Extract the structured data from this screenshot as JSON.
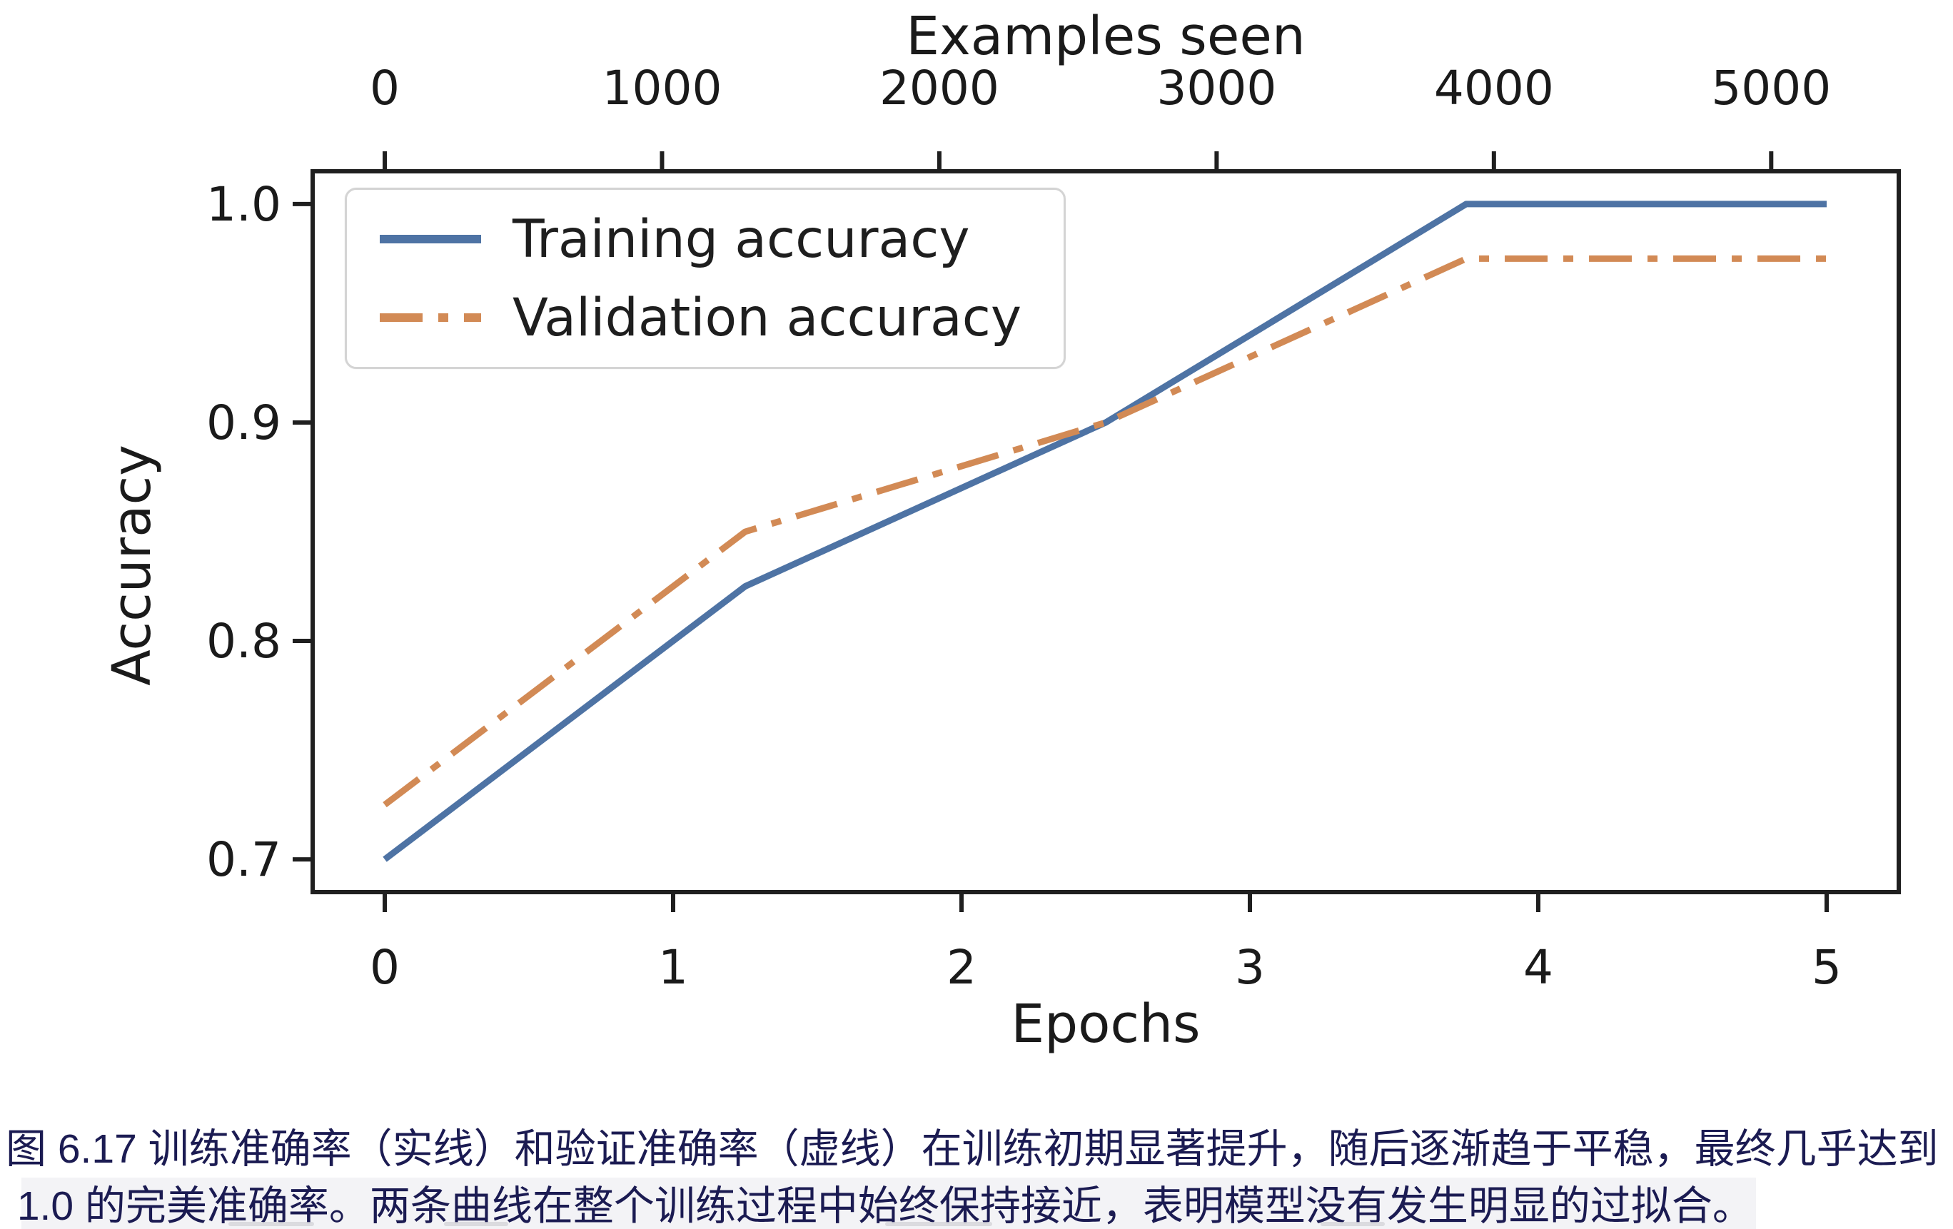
{
  "figure": {
    "caption_line1": "图 6.17 训练准确率（实线）和验证准确率（虚线）在训练初期显著提升，随后逐渐趋于平稳，最终几乎达到",
    "caption_line2": " 1.0 的完美准确率。两条曲线在整个训练过程中始终保持接近，表明模型没有发生明显的过拟合。",
    "caption_color": "#1b1b52"
  },
  "chart_data": {
    "type": "line",
    "x": [
      0,
      1.25,
      2.5,
      3.75,
      5
    ],
    "series": [
      {
        "name": "Training accuracy",
        "slug": "training-accuracy",
        "line_style": "solid",
        "color": "#4e73a4",
        "values": [
          0.7,
          0.825,
          0.9,
          1.0,
          1.0
        ]
      },
      {
        "name": "Validation accuracy",
        "slug": "validation-accuracy",
        "line_style": "dash-dot",
        "color": "#d28a55",
        "values": [
          0.725,
          0.85,
          0.9,
          0.975,
          0.975
        ]
      }
    ],
    "xlabel": "Epochs",
    "ylabel": "Accuracy",
    "top_xlabel": "Examples seen",
    "x_ticks": [
      "0",
      "1",
      "2",
      "3",
      "4",
      "5"
    ],
    "x_tick_values": [
      0,
      1,
      2,
      3,
      4,
      5
    ],
    "y_ticks": [
      "0.7",
      "0.8",
      "0.9",
      "1.0"
    ],
    "y_tick_values": [
      0.7,
      0.8,
      0.9,
      1.0
    ],
    "top_x_ticks": [
      "0",
      "1000",
      "2000",
      "3000",
      "4000",
      "5000"
    ],
    "top_x_tick_values": [
      0,
      1000,
      2000,
      3000,
      4000,
      5000
    ],
    "xlim": [
      -0.25,
      5.25
    ],
    "ylim": [
      0.685,
      1.015
    ],
    "top_xlim": [
      -260,
      5460
    ],
    "examples_per_epoch": 1040,
    "grid": false,
    "legend_position": "upper left",
    "axis_color": "#1f1f1f"
  }
}
